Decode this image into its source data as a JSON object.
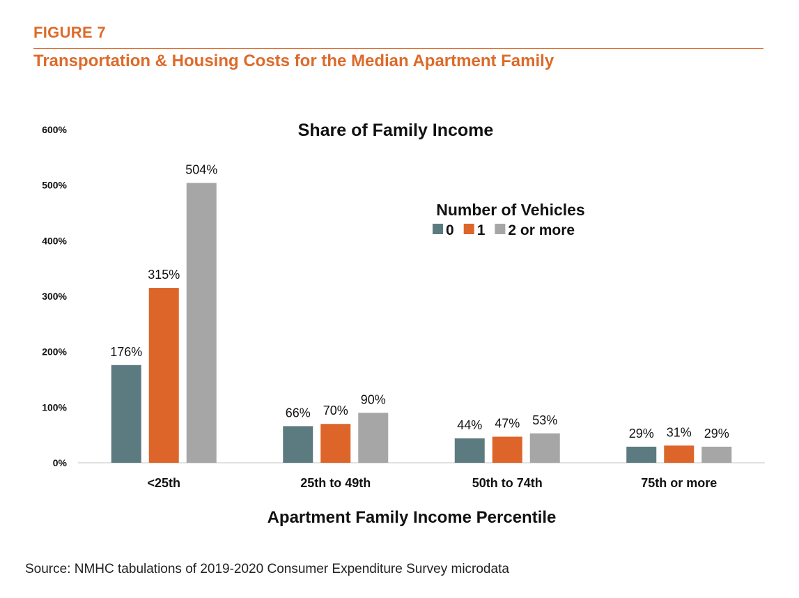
{
  "figure": {
    "label": "FIGURE 7",
    "title": "Transportation & Housing Costs for the Median Apartment Family",
    "source": "Source: NMHC tabulations of 2019-2020 Consumer Expenditure Survey microdata",
    "accent_color": "#dd6a2a"
  },
  "chart_data": {
    "type": "bar",
    "title": "Share of Family Income",
    "xlabel": "Apartment Family Income Percentile",
    "ylabel": "",
    "ylim": [
      0,
      600
    ],
    "yticks": [
      "0%",
      "100%",
      "200%",
      "300%",
      "400%",
      "500%",
      "600%"
    ],
    "ytick_values": [
      0,
      100,
      200,
      300,
      400,
      500,
      600
    ],
    "grid": false,
    "categories": [
      "<25th",
      "25th to 49th",
      "50th to 74th",
      "75th or more"
    ],
    "legend": {
      "title": "Number of Vehicles",
      "placement": "top-right"
    },
    "series": [
      {
        "name": "0",
        "color": "#5c7b80",
        "values": [
          176,
          66,
          44,
          29
        ],
        "labels": [
          "176%",
          "66%",
          "44%",
          "29%"
        ]
      },
      {
        "name": "1",
        "color": "#dd6529",
        "values": [
          315,
          70,
          47,
          31
        ],
        "labels": [
          "315%",
          "70%",
          "47%",
          "31%"
        ]
      },
      {
        "name": "2 or more",
        "color": "#a6a6a6",
        "values": [
          504,
          90,
          53,
          29
        ],
        "labels": [
          "504%",
          "90%",
          "53%",
          "29%"
        ]
      }
    ]
  }
}
